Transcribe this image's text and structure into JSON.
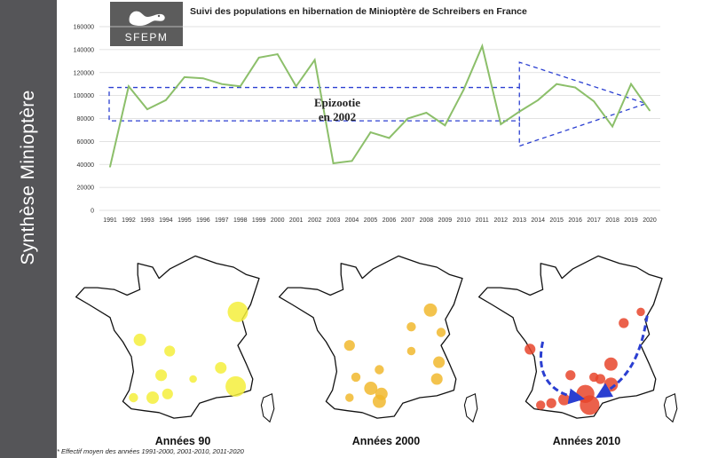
{
  "sidebar": {
    "title": "Synthèse Minioptère"
  },
  "logo": {
    "text": "SFEPM"
  },
  "chart_data": {
    "type": "line",
    "title": "Suivi des populations en hibernation de Minioptère de Schreibers en France",
    "xlabel": "",
    "ylabel": "",
    "x": [
      1991,
      1992,
      1993,
      1994,
      1995,
      1996,
      1997,
      1998,
      1999,
      2000,
      2001,
      2002,
      2003,
      2004,
      2005,
      2006,
      2007,
      2008,
      2009,
      2010,
      2011,
      2012,
      2013,
      2014,
      2015,
      2016,
      2017,
      2018,
      2019,
      2020
    ],
    "values": [
      38000,
      108000,
      88000,
      96000,
      116000,
      115000,
      110000,
      108000,
      133000,
      136000,
      108000,
      131000,
      41000,
      43000,
      68000,
      63000,
      80000,
      85000,
      74000,
      105000,
      143000,
      75000,
      86000,
      96000,
      110000,
      107000,
      95000,
      73000,
      110000,
      87000
    ],
    "ylim": [
      0,
      160000
    ],
    "yticks": [
      "0",
      "20000",
      "40000",
      "60000",
      "80000",
      "100000",
      "120000",
      "140000",
      "160000"
    ],
    "series_color": "#8cbf6a",
    "annotation": [
      "Epizootie",
      "en 2002"
    ],
    "annotation_color": "#2b3fd1",
    "grid": true
  },
  "maps": [
    {
      "label": "Années 90",
      "color": "#f5ee3c",
      "dots": [
        [
          0.8,
          0.34,
          1.0
        ],
        [
          0.34,
          0.49,
          0.5
        ],
        [
          0.48,
          0.55,
          0.4
        ],
        [
          0.72,
          0.64,
          0.45
        ],
        [
          0.79,
          0.74,
          1.0
        ],
        [
          0.44,
          0.68,
          0.45
        ],
        [
          0.47,
          0.78,
          0.4
        ],
        [
          0.4,
          0.8,
          0.5
        ],
        [
          0.31,
          0.8,
          0.3
        ],
        [
          0.59,
          0.7,
          0.2
        ]
      ]
    },
    {
      "label": "Années 2000",
      "color": "#f1b92e",
      "dots": [
        [
          0.75,
          0.33,
          0.55
        ],
        [
          0.66,
          0.42,
          0.3
        ],
        [
          0.8,
          0.45,
          0.3
        ],
        [
          0.37,
          0.52,
          0.4
        ],
        [
          0.66,
          0.55,
          0.25
        ],
        [
          0.79,
          0.61,
          0.45
        ],
        [
          0.51,
          0.65,
          0.3
        ],
        [
          0.78,
          0.7,
          0.45
        ],
        [
          0.4,
          0.69,
          0.3
        ],
        [
          0.47,
          0.75,
          0.55
        ],
        [
          0.52,
          0.78,
          0.5
        ],
        [
          0.37,
          0.8,
          0.25
        ],
        [
          0.51,
          0.82,
          0.55
        ]
      ]
    },
    {
      "label": "Années 2010",
      "color": "#e8452c",
      "dots": [
        [
          0.28,
          0.54,
          0.4
        ],
        [
          0.47,
          0.68,
          0.35
        ],
        [
          0.66,
          0.62,
          0.55
        ],
        [
          0.72,
          0.4,
          0.35
        ],
        [
          0.8,
          0.34,
          0.25
        ],
        [
          0.61,
          0.7,
          0.35
        ],
        [
          0.66,
          0.73,
          0.6
        ],
        [
          0.54,
          0.78,
          0.85
        ],
        [
          0.56,
          0.84,
          0.95
        ],
        [
          0.44,
          0.81,
          0.45
        ],
        [
          0.38,
          0.83,
          0.35
        ],
        [
          0.33,
          0.84,
          0.3
        ],
        [
          0.58,
          0.69,
          0.3
        ]
      ]
    }
  ],
  "footnote": "* Effectif moyen des années 1991-2000, 2001-2010, 2011-2020"
}
